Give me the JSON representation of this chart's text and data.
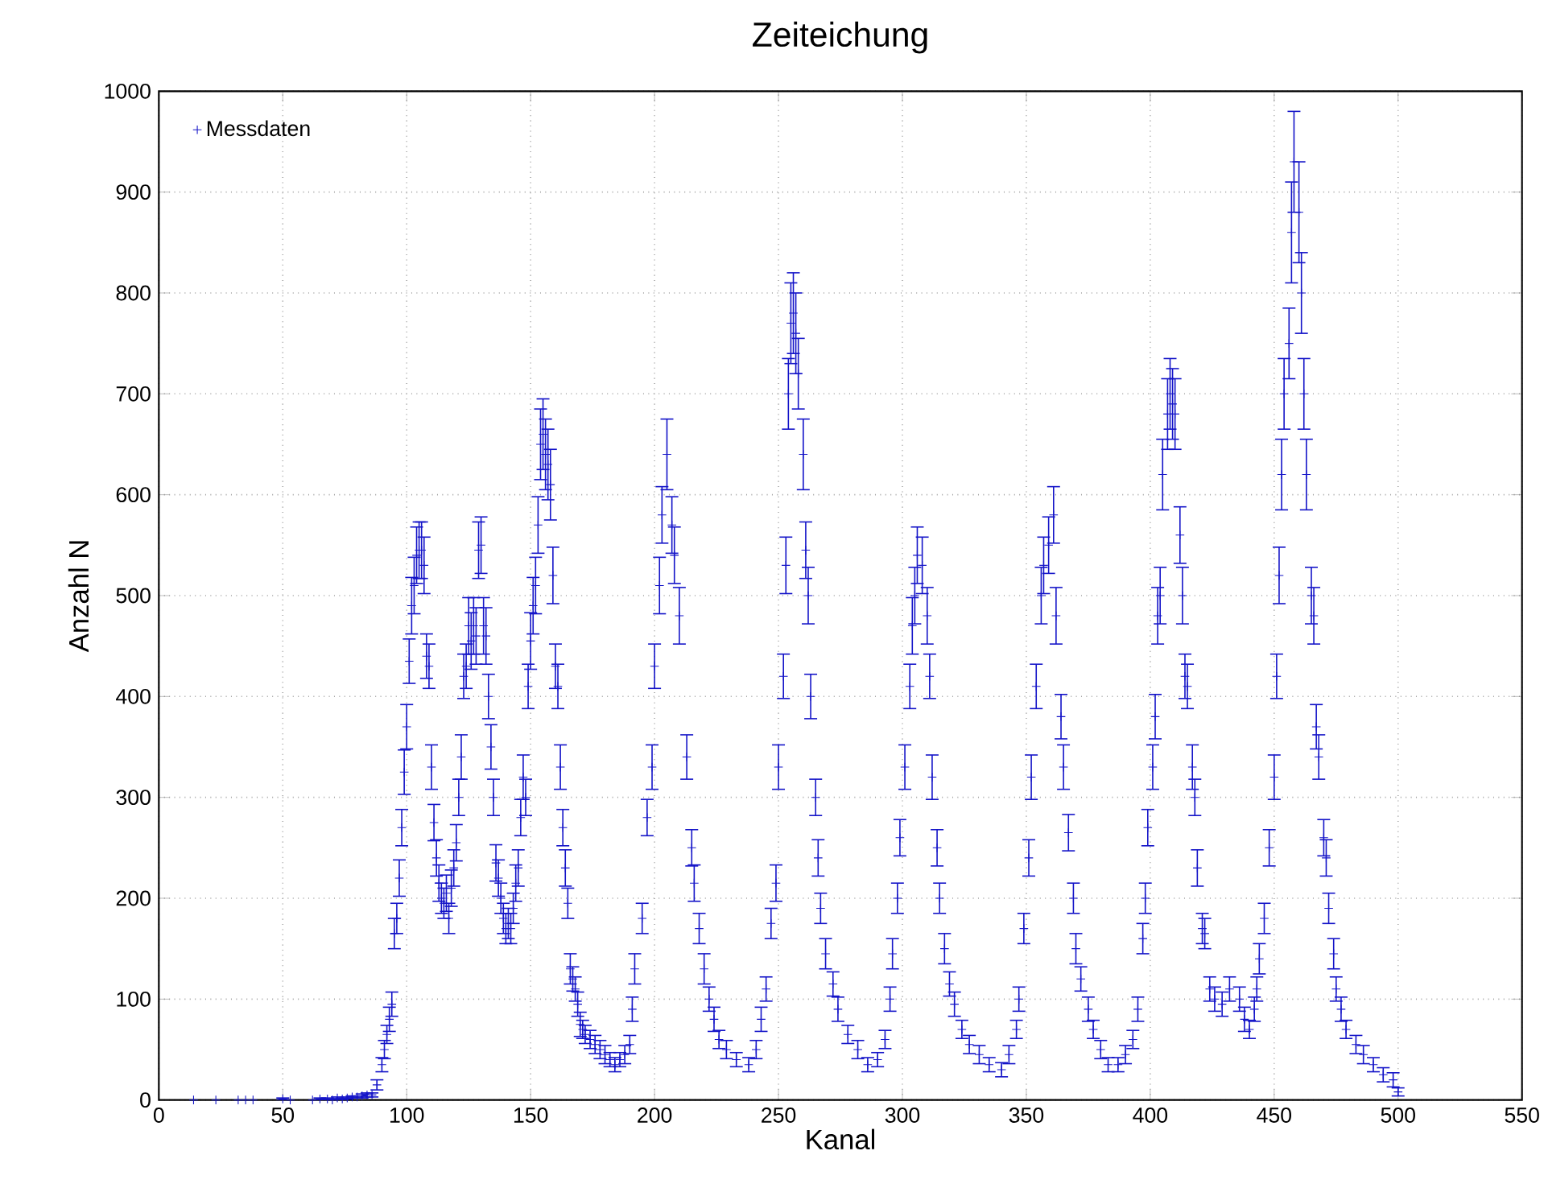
{
  "chart_data": {
    "type": "scatter",
    "title": "Zeiteichung",
    "xlabel": "Kanal",
    "ylabel": "Anzahl N",
    "xlim": [
      0,
      550
    ],
    "xticks": [
      0,
      50,
      100,
      150,
      200,
      250,
      300,
      350,
      400,
      450,
      500,
      550
    ],
    "ylim": [
      0,
      1000
    ],
    "yticks": [
      0,
      100,
      200,
      300,
      400,
      500,
      600,
      700,
      800,
      900,
      1000
    ],
    "grid": true,
    "legend": "top left",
    "marker": "cross",
    "series": [
      {
        "name": "Messdaten",
        "color": "#1414c8",
        "x": [
          14,
          23,
          32,
          35,
          38,
          50,
          53,
          62,
          65,
          68,
          70,
          72,
          74,
          76,
          78,
          80,
          82,
          84,
          86,
          88,
          90,
          91,
          92,
          93,
          94,
          95,
          96,
          97,
          98,
          99,
          100,
          101,
          102,
          103,
          104,
          105,
          106,
          107,
          108,
          109,
          110,
          111,
          112,
          113,
          114,
          115,
          116,
          117,
          118,
          119,
          120,
          121,
          122,
          123,
          124,
          125,
          126,
          127,
          128,
          129,
          130,
          131,
          132,
          133,
          134,
          135,
          136,
          137,
          138,
          139,
          140,
          141,
          142,
          143,
          144,
          145,
          146,
          147,
          148,
          149,
          150,
          151,
          152,
          153,
          154,
          155,
          156,
          157,
          158,
          159,
          160,
          161,
          162,
          163,
          164,
          165,
          166,
          167,
          168,
          169,
          170,
          171,
          172,
          174,
          176,
          178,
          180,
          182,
          184,
          186,
          188,
          190,
          191,
          192,
          195,
          197,
          199,
          200,
          202,
          203,
          205,
          207,
          208,
          210,
          213,
          215,
          216,
          218,
          220,
          222,
          224,
          226,
          229,
          233,
          238,
          241,
          243,
          245,
          247,
          249,
          250,
          252,
          253,
          254,
          255,
          256,
          257,
          258,
          260,
          261,
          262,
          263,
          265,
          266,
          267,
          269,
          272,
          274,
          278,
          282,
          286,
          290,
          293,
          295,
          296,
          298,
          299,
          301,
          303,
          304,
          305,
          306,
          308,
          310,
          311,
          312,
          314,
          315,
          317,
          319,
          321,
          324,
          327,
          331,
          335,
          340,
          343,
          346,
          347,
          349,
          351,
          352,
          354,
          356,
          357,
          359,
          361,
          362,
          364,
          365,
          367,
          369,
          370,
          372,
          375,
          377,
          380,
          383,
          387,
          390,
          393,
          395,
          397,
          398,
          399,
          401,
          402,
          403,
          404,
          405,
          407,
          408,
          409,
          410,
          412,
          413,
          414,
          415,
          417,
          418,
          419,
          421,
          422,
          424,
          426,
          429,
          432,
          436,
          438,
          440,
          442,
          443,
          444,
          446,
          448,
          450,
          451,
          452,
          453,
          454,
          456,
          457,
          458,
          460,
          461,
          462,
          463,
          465,
          466,
          467,
          468,
          470,
          471,
          472,
          474,
          475,
          477,
          479,
          483,
          486,
          490,
          494,
          498,
          500
        ],
        "values": [
          0,
          0,
          0,
          0,
          0,
          1,
          0,
          0,
          1,
          1,
          0,
          2,
          1,
          2,
          3,
          3,
          4,
          5,
          5,
          15,
          35,
          50,
          65,
          80,
          95,
          165,
          180,
          220,
          270,
          325,
          370,
          435,
          490,
          510,
          540,
          545,
          545,
          530,
          440,
          430,
          330,
          275,
          240,
          215,
          200,
          195,
          205,
          180,
          210,
          230,
          255,
          300,
          340,
          420,
          430,
          470,
          455,
          470,
          460,
          545,
          550,
          470,
          460,
          400,
          350,
          300,
          235,
          220,
          200,
          180,
          170,
          175,
          170,
          190,
          215,
          230,
          280,
          320,
          300,
          410,
          455,
          490,
          510,
          570,
          650,
          660,
          640,
          630,
          610,
          520,
          430,
          410,
          330,
          270,
          230,
          195,
          130,
          120,
          110,
          95,
          75,
          70,
          65,
          60,
          55,
          50,
          45,
          40,
          35,
          40,
          45,
          55,
          90,
          130,
          180,
          280,
          330,
          430,
          510,
          580,
          640,
          570,
          540,
          480,
          340,
          250,
          215,
          170,
          130,
          100,
          80,
          60,
          50,
          40,
          35,
          50,
          80,
          110,
          175,
          215,
          330,
          420,
          530,
          700,
          770,
          780,
          760,
          720,
          640,
          545,
          500,
          400,
          300,
          240,
          190,
          145,
          115,
          90,
          65,
          50,
          35,
          40,
          60,
          100,
          145,
          200,
          260,
          330,
          410,
          470,
          500,
          540,
          530,
          480,
          420,
          320,
          250,
          200,
          150,
          115,
          95,
          70,
          55,
          45,
          35,
          30,
          45,
          70,
          100,
          170,
          240,
          320,
          410,
          500,
          530,
          550,
          580,
          480,
          380,
          330,
          265,
          200,
          150,
          120,
          90,
          70,
          50,
          35,
          35,
          45,
          60,
          90,
          160,
          200,
          270,
          330,
          380,
          480,
          500,
          620,
          680,
          700,
          690,
          680,
          560,
          500,
          420,
          410,
          330,
          300,
          230,
          170,
          165,
          110,
          100,
          95,
          110,
          100,
          80,
          70,
          90,
          110,
          140,
          180,
          250,
          320,
          420,
          520,
          620,
          700,
          750,
          860,
          930,
          880,
          800,
          700,
          620,
          500,
          480,
          370,
          340,
          260,
          240,
          190,
          145,
          110,
          90,
          70,
          55,
          45,
          35,
          25,
          20,
          8
        ],
        "errors": [
          null,
          null,
          null,
          null,
          null,
          1,
          null,
          null,
          1,
          1,
          null,
          1,
          1,
          1,
          1,
          1,
          2,
          2,
          2,
          5,
          7,
          9,
          9,
          12,
          12,
          15,
          15,
          18,
          18,
          22,
          22,
          22,
          28,
          28,
          28,
          28,
          28,
          28,
          22,
          22,
          22,
          18,
          18,
          18,
          15,
          15,
          18,
          15,
          18,
          18,
          18,
          18,
          22,
          22,
          22,
          28,
          28,
          28,
          28,
          28,
          28,
          28,
          28,
          22,
          22,
          18,
          18,
          18,
          15,
          15,
          15,
          15,
          15,
          15,
          18,
          18,
          18,
          22,
          18,
          22,
          28,
          28,
          28,
          28,
          35,
          35,
          35,
          35,
          35,
          28,
          22,
          22,
          22,
          18,
          18,
          15,
          15,
          12,
          12,
          12,
          12,
          9,
          9,
          9,
          9,
          9,
          9,
          7,
          7,
          7,
          9,
          9,
          12,
          15,
          15,
          18,
          22,
          22,
          28,
          28,
          35,
          28,
          28,
          28,
          22,
          18,
          18,
          15,
          15,
          12,
          12,
          9,
          9,
          7,
          7,
          9,
          12,
          12,
          15,
          18,
          22,
          22,
          28,
          35,
          40,
          40,
          40,
          35,
          35,
          28,
          28,
          22,
          18,
          18,
          15,
          15,
          12,
          12,
          9,
          9,
          7,
          7,
          9,
          12,
          15,
          15,
          18,
          22,
          22,
          28,
          28,
          28,
          28,
          28,
          22,
          22,
          18,
          15,
          15,
          12,
          12,
          9,
          9,
          9,
          7,
          7,
          9,
          9,
          12,
          15,
          18,
          22,
          22,
          28,
          28,
          28,
          28,
          28,
          22,
          22,
          18,
          15,
          15,
          12,
          12,
          9,
          9,
          7,
          7,
          9,
          9,
          12,
          15,
          15,
          18,
          22,
          22,
          28,
          28,
          35,
          35,
          35,
          35,
          35,
          28,
          28,
          22,
          22,
          22,
          18,
          18,
          15,
          15,
          12,
          12,
          12,
          12,
          12,
          12,
          9,
          12,
          12,
          15,
          15,
          18,
          22,
          22,
          28,
          35,
          35,
          35,
          50,
          50,
          50,
          40,
          35,
          35,
          28,
          28,
          22,
          22,
          18,
          18,
          15,
          15,
          12,
          12,
          9,
          9,
          9,
          7,
          7,
          7,
          4
        ]
      }
    ]
  }
}
